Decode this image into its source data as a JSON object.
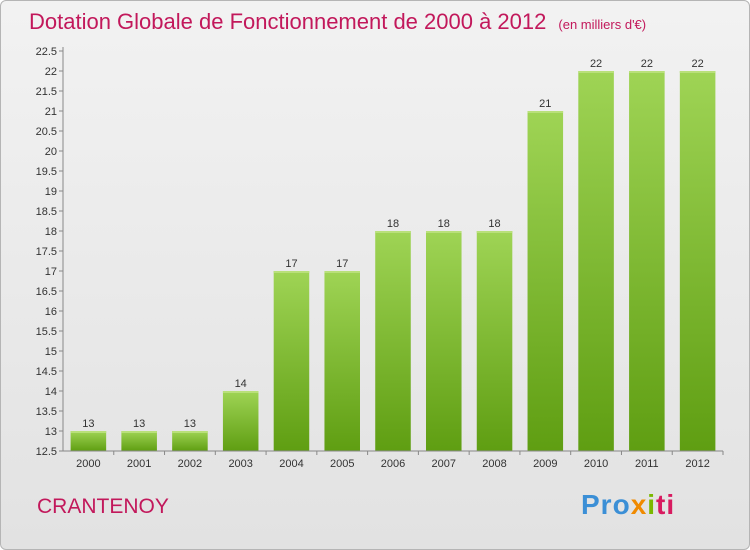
{
  "chart_data": {
    "type": "bar",
    "title": "Dotation Globale de Fonctionnement de 2000 à 2012",
    "subtitle": "(en milliers d'€)",
    "xlabel": "",
    "ylabel": "",
    "categories": [
      "2000",
      "2001",
      "2002",
      "2003",
      "2004",
      "2005",
      "2006",
      "2007",
      "2008",
      "2009",
      "2010",
      "2011",
      "2012"
    ],
    "values": [
      13,
      13,
      13,
      14,
      17,
      17,
      18,
      18,
      18,
      21,
      22,
      22,
      22
    ],
    "ylim": [
      12.5,
      22.5
    ],
    "yticks": [
      "12.5",
      "13",
      "13.5",
      "14",
      "14.5",
      "15",
      "15.5",
      "16",
      "16.5",
      "17",
      "17.5",
      "18",
      "18.5",
      "19",
      "19.5",
      "20",
      "20.5",
      "21",
      "21.5",
      "22",
      "22.5"
    ],
    "grid": false,
    "legend": "none",
    "bar_color": "#7ec035"
  },
  "footer": {
    "commune": "CRANTENOY"
  },
  "logo": {
    "p1": "Pro",
    "p2": "x",
    "p3": "i",
    "p4": "ti"
  }
}
